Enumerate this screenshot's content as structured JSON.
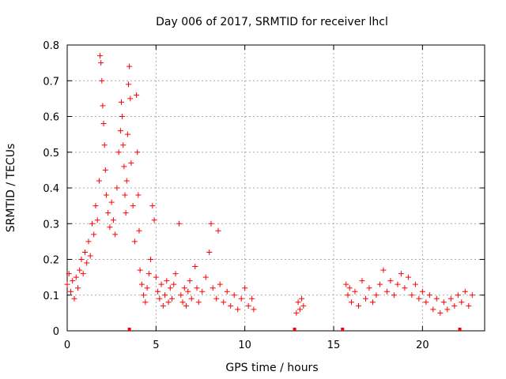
{
  "chart_data": {
    "type": "scatter",
    "title": "Day 006 of 2017, SRMTID for receiver lhcl",
    "xlabel": "GPS time / hours",
    "ylabel": "SRMTID / TECUs",
    "xlim": [
      0,
      23.5
    ],
    "ylim": [
      0,
      0.8
    ],
    "xticks": [
      0,
      5,
      10,
      15,
      20
    ],
    "yticks": [
      0,
      0.1,
      0.2,
      0.3,
      0.4,
      0.5,
      0.6,
      0.7,
      0.8
    ],
    "xtick_labels": [
      "0",
      "5",
      "10",
      "15",
      "20"
    ],
    "ytick_labels": [
      "0",
      "0.1",
      "0.2",
      "0.3",
      "0.4",
      "0.5",
      "0.6",
      "0.7",
      "0.8"
    ],
    "grid": true,
    "marker": "+",
    "color": "#ff0000",
    "series": [
      {
        "name": "SRMTID",
        "points": [
          [
            0.0,
            0.13
          ],
          [
            0.1,
            0.16
          ],
          [
            0.2,
            0.11
          ],
          [
            0.3,
            0.14
          ],
          [
            0.4,
            0.09
          ],
          [
            0.5,
            0.15
          ],
          [
            0.6,
            0.12
          ],
          [
            0.7,
            0.17
          ],
          [
            0.8,
            0.2
          ],
          [
            0.9,
            0.16
          ],
          [
            1.0,
            0.22
          ],
          [
            1.1,
            0.19
          ],
          [
            1.2,
            0.25
          ],
          [
            1.3,
            0.21
          ],
          [
            1.4,
            0.3
          ],
          [
            1.5,
            0.27
          ],
          [
            1.6,
            0.35
          ],
          [
            1.7,
            0.31
          ],
          [
            1.8,
            0.42
          ],
          [
            1.85,
            0.77
          ],
          [
            1.9,
            0.75
          ],
          [
            1.95,
            0.7
          ],
          [
            2.0,
            0.63
          ],
          [
            2.05,
            0.58
          ],
          [
            2.1,
            0.52
          ],
          [
            2.15,
            0.45
          ],
          [
            2.2,
            0.38
          ],
          [
            2.3,
            0.33
          ],
          [
            2.4,
            0.29
          ],
          [
            2.5,
            0.36
          ],
          [
            2.6,
            0.31
          ],
          [
            2.7,
            0.27
          ],
          [
            2.8,
            0.4
          ],
          [
            2.9,
            0.5
          ],
          [
            3.0,
            0.56
          ],
          [
            3.05,
            0.64
          ],
          [
            3.1,
            0.6
          ],
          [
            3.15,
            0.52
          ],
          [
            3.2,
            0.46
          ],
          [
            3.25,
            0.38
          ],
          [
            3.3,
            0.33
          ],
          [
            3.35,
            0.42
          ],
          [
            3.4,
            0.55
          ],
          [
            3.45,
            0.69
          ],
          [
            3.5,
            0.74
          ],
          [
            3.55,
            0.65
          ],
          [
            3.6,
            0.47
          ],
          [
            3.7,
            0.35
          ],
          [
            3.8,
            0.25
          ],
          [
            3.9,
            0.66
          ],
          [
            3.95,
            0.5
          ],
          [
            4.0,
            0.38
          ],
          [
            4.05,
            0.28
          ],
          [
            4.1,
            0.17
          ],
          [
            4.2,
            0.13
          ],
          [
            4.3,
            0.1
          ],
          [
            4.4,
            0.08
          ],
          [
            4.5,
            0.12
          ],
          [
            4.6,
            0.16
          ],
          [
            4.7,
            0.2
          ],
          [
            4.8,
            0.35
          ],
          [
            4.9,
            0.31
          ],
          [
            5.0,
            0.15
          ],
          [
            5.1,
            0.11
          ],
          [
            5.2,
            0.09
          ],
          [
            5.3,
            0.13
          ],
          [
            5.4,
            0.07
          ],
          [
            5.5,
            0.1
          ],
          [
            5.6,
            0.14
          ],
          [
            5.7,
            0.08
          ],
          [
            5.8,
            0.12
          ],
          [
            5.9,
            0.09
          ],
          [
            6.0,
            0.13
          ],
          [
            6.1,
            0.16
          ],
          [
            6.3,
            0.3
          ],
          [
            6.4,
            0.1
          ],
          [
            6.5,
            0.08
          ],
          [
            6.6,
            0.12
          ],
          [
            6.7,
            0.07
          ],
          [
            6.8,
            0.11
          ],
          [
            6.9,
            0.14
          ],
          [
            7.0,
            0.09
          ],
          [
            7.2,
            0.18
          ],
          [
            7.3,
            0.12
          ],
          [
            7.4,
            0.08
          ],
          [
            7.6,
            0.11
          ],
          [
            7.8,
            0.15
          ],
          [
            8.0,
            0.22
          ],
          [
            8.1,
            0.3
          ],
          [
            8.2,
            0.12
          ],
          [
            8.4,
            0.09
          ],
          [
            8.5,
            0.28
          ],
          [
            8.6,
            0.13
          ],
          [
            8.8,
            0.08
          ],
          [
            9.0,
            0.11
          ],
          [
            9.2,
            0.07
          ],
          [
            9.4,
            0.1
          ],
          [
            9.6,
            0.06
          ],
          [
            9.8,
            0.09
          ],
          [
            10.0,
            0.12
          ],
          [
            10.2,
            0.07
          ],
          [
            10.4,
            0.09
          ],
          [
            10.5,
            0.06
          ],
          [
            12.9,
            0.05
          ],
          [
            13.0,
            0.08
          ],
          [
            13.1,
            0.06
          ],
          [
            13.2,
            0.09
          ],
          [
            13.3,
            0.07
          ],
          [
            15.7,
            0.13
          ],
          [
            15.8,
            0.1
          ],
          [
            15.9,
            0.12
          ],
          [
            16.0,
            0.08
          ],
          [
            16.2,
            0.11
          ],
          [
            16.4,
            0.07
          ],
          [
            16.6,
            0.14
          ],
          [
            16.8,
            0.09
          ],
          [
            17.0,
            0.12
          ],
          [
            17.2,
            0.08
          ],
          [
            17.4,
            0.1
          ],
          [
            17.6,
            0.13
          ],
          [
            17.8,
            0.17
          ],
          [
            18.0,
            0.11
          ],
          [
            18.2,
            0.14
          ],
          [
            18.4,
            0.1
          ],
          [
            18.6,
            0.13
          ],
          [
            18.8,
            0.16
          ],
          [
            19.0,
            0.12
          ],
          [
            19.2,
            0.15
          ],
          [
            19.4,
            0.1
          ],
          [
            19.6,
            0.13
          ],
          [
            19.8,
            0.09
          ],
          [
            20.0,
            0.11
          ],
          [
            20.2,
            0.08
          ],
          [
            20.4,
            0.1
          ],
          [
            20.6,
            0.06
          ],
          [
            20.8,
            0.09
          ],
          [
            21.0,
            0.05
          ],
          [
            21.2,
            0.08
          ],
          [
            21.4,
            0.06
          ],
          [
            21.6,
            0.09
          ],
          [
            21.8,
            0.07
          ],
          [
            22.0,
            0.1
          ],
          [
            22.2,
            0.08
          ],
          [
            22.4,
            0.11
          ],
          [
            22.6,
            0.07
          ],
          [
            22.8,
            0.1
          ]
        ]
      }
    ],
    "baseline_markers": [
      3.5,
      12.8,
      15.5,
      22.1
    ]
  }
}
